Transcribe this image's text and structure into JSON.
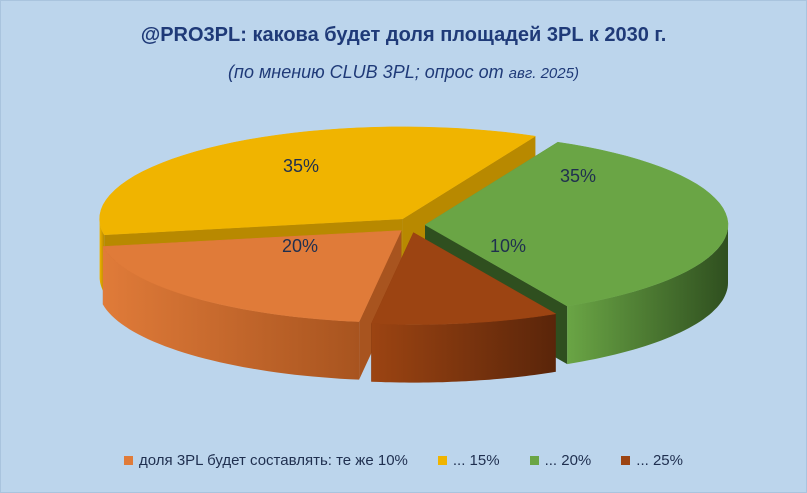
{
  "chart_data": {
    "type": "pie",
    "title": "@PRO3PL: какова будет доля площадей 3PL к 2030 г.",
    "subtitle_main": "(по мнению CLUB 3PL; опрос от",
    "subtitle_small": "авг. 2025)",
    "unit": "%",
    "slices": [
      {
        "label": "доля 3PL будет составлять: те же 10%",
        "value": 20,
        "color": "#e07b39",
        "dark": "#a8541f",
        "display": "20%"
      },
      {
        "label": "... 15%",
        "value": 35,
        "color": "#f0b400",
        "dark": "#b88900",
        "display": "35%"
      },
      {
        "label": "... 20%",
        "value": 35,
        "color": "#6aa545",
        "dark": "#2f4f1f",
        "display": "35%"
      },
      {
        "label": "... 25%",
        "value": 10,
        "color": "#9c4412",
        "dark": "#5a250a",
        "display": "10%"
      }
    ]
  }
}
